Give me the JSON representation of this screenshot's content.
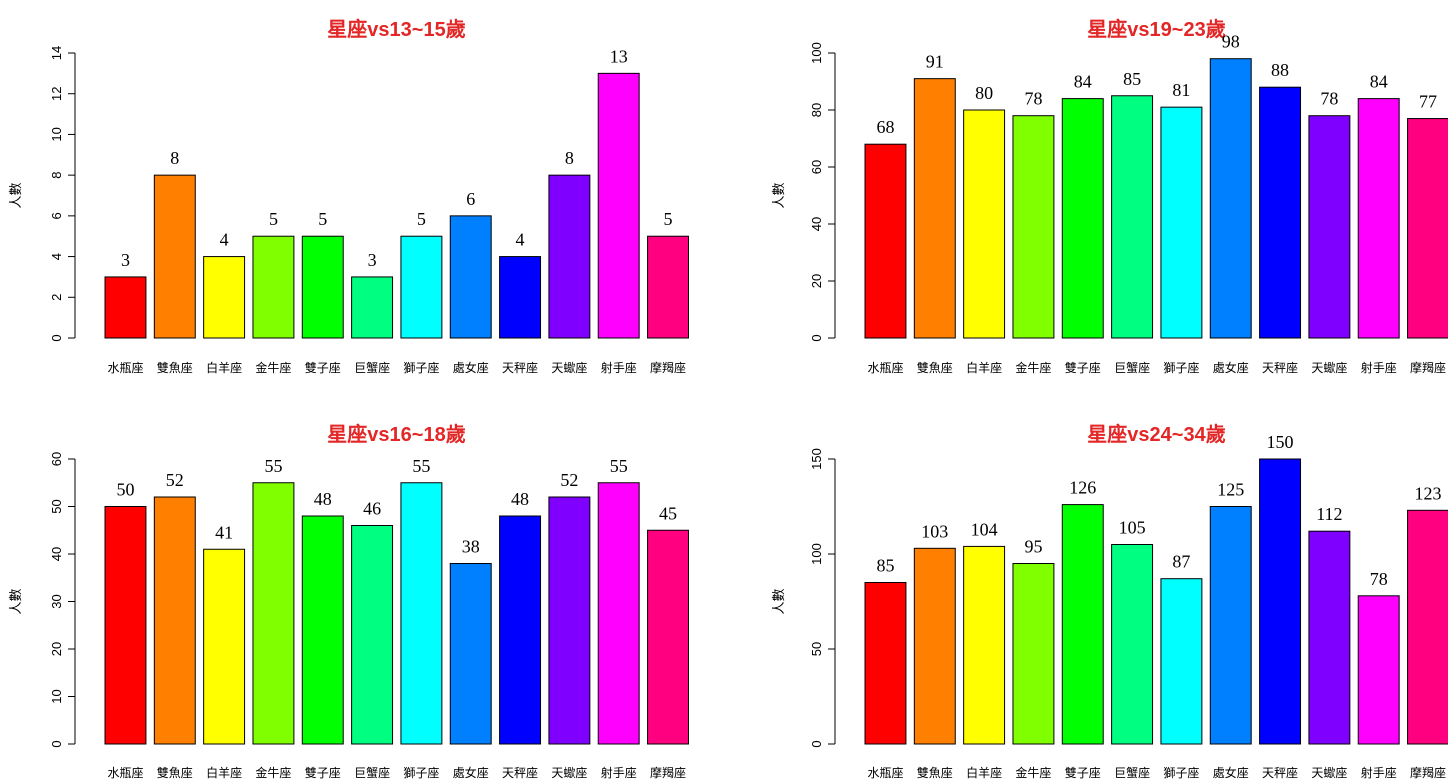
{
  "chart_data": [
    {
      "type": "bar",
      "title": "星座vs13~15歲",
      "ylabel": "人數",
      "categories": [
        "水瓶座",
        "雙魚座",
        "白羊座",
        "金牛座",
        "雙子座",
        "巨蟹座",
        "獅子座",
        "處女座",
        "天秤座",
        "天蠍座",
        "射手座",
        "摩羯座"
      ],
      "values": [
        3,
        8,
        4,
        5,
        5,
        3,
        5,
        6,
        4,
        8,
        13,
        5
      ],
      "ylim": [
        0,
        14
      ],
      "yticks": [
        0,
        2,
        4,
        6,
        8,
        10,
        12,
        14
      ],
      "colors": [
        "#FF0000",
        "#FF8000",
        "#FFFF00",
        "#80FF00",
        "#00FF00",
        "#00FF80",
        "#00FFFF",
        "#0080FF",
        "#0000FF",
        "#8000FF",
        "#FF00FF",
        "#FF0080"
      ],
      "grid": false,
      "legend": "none"
    },
    {
      "type": "bar",
      "title": "星座vs19~23歲",
      "ylabel": "人數",
      "categories": [
        "水瓶座",
        "雙魚座",
        "白羊座",
        "金牛座",
        "雙子座",
        "巨蟹座",
        "獅子座",
        "處女座",
        "天秤座",
        "天蠍座",
        "射手座",
        "摩羯座"
      ],
      "values": [
        68,
        91,
        80,
        78,
        84,
        85,
        81,
        98,
        88,
        78,
        84,
        77
      ],
      "ylim": [
        0,
        100
      ],
      "yticks": [
        0,
        20,
        40,
        60,
        80,
        100
      ],
      "colors": [
        "#FF0000",
        "#FF8000",
        "#FFFF00",
        "#80FF00",
        "#00FF00",
        "#00FF80",
        "#00FFFF",
        "#0080FF",
        "#0000FF",
        "#8000FF",
        "#FF00FF",
        "#FF0080"
      ],
      "grid": false,
      "legend": "none"
    },
    {
      "type": "bar",
      "title": "星座vs16~18歲",
      "ylabel": "人數",
      "categories": [
        "水瓶座",
        "雙魚座",
        "白羊座",
        "金牛座",
        "雙子座",
        "巨蟹座",
        "獅子座",
        "處女座",
        "天秤座",
        "天蠍座",
        "射手座",
        "摩羯座"
      ],
      "values": [
        50,
        52,
        41,
        55,
        48,
        46,
        55,
        38,
        48,
        52,
        55,
        45
      ],
      "ylim": [
        0,
        60
      ],
      "yticks": [
        0,
        10,
        20,
        30,
        40,
        50,
        60
      ],
      "colors": [
        "#FF0000",
        "#FF8000",
        "#FFFF00",
        "#80FF00",
        "#00FF00",
        "#00FF80",
        "#00FFFF",
        "#0080FF",
        "#0000FF",
        "#8000FF",
        "#FF00FF",
        "#FF0080"
      ],
      "grid": false,
      "legend": "none"
    },
    {
      "type": "bar",
      "title": "星座vs24~34歲",
      "ylabel": "人數",
      "categories": [
        "水瓶座",
        "雙魚座",
        "白羊座",
        "金牛座",
        "雙子座",
        "巨蟹座",
        "獅子座",
        "處女座",
        "天秤座",
        "天蠍座",
        "射手座",
        "摩羯座"
      ],
      "values": [
        85,
        103,
        104,
        95,
        126,
        105,
        87,
        125,
        150,
        112,
        78,
        123
      ],
      "ylim": [
        0,
        150
      ],
      "yticks": [
        0,
        50,
        100,
        150
      ],
      "colors": [
        "#FF0000",
        "#FF8000",
        "#FFFF00",
        "#80FF00",
        "#00FF00",
        "#00FF80",
        "#00FFFF",
        "#0080FF",
        "#0000FF",
        "#8000FF",
        "#FF00FF",
        "#FF0080"
      ],
      "grid": false,
      "legend": "none"
    }
  ]
}
